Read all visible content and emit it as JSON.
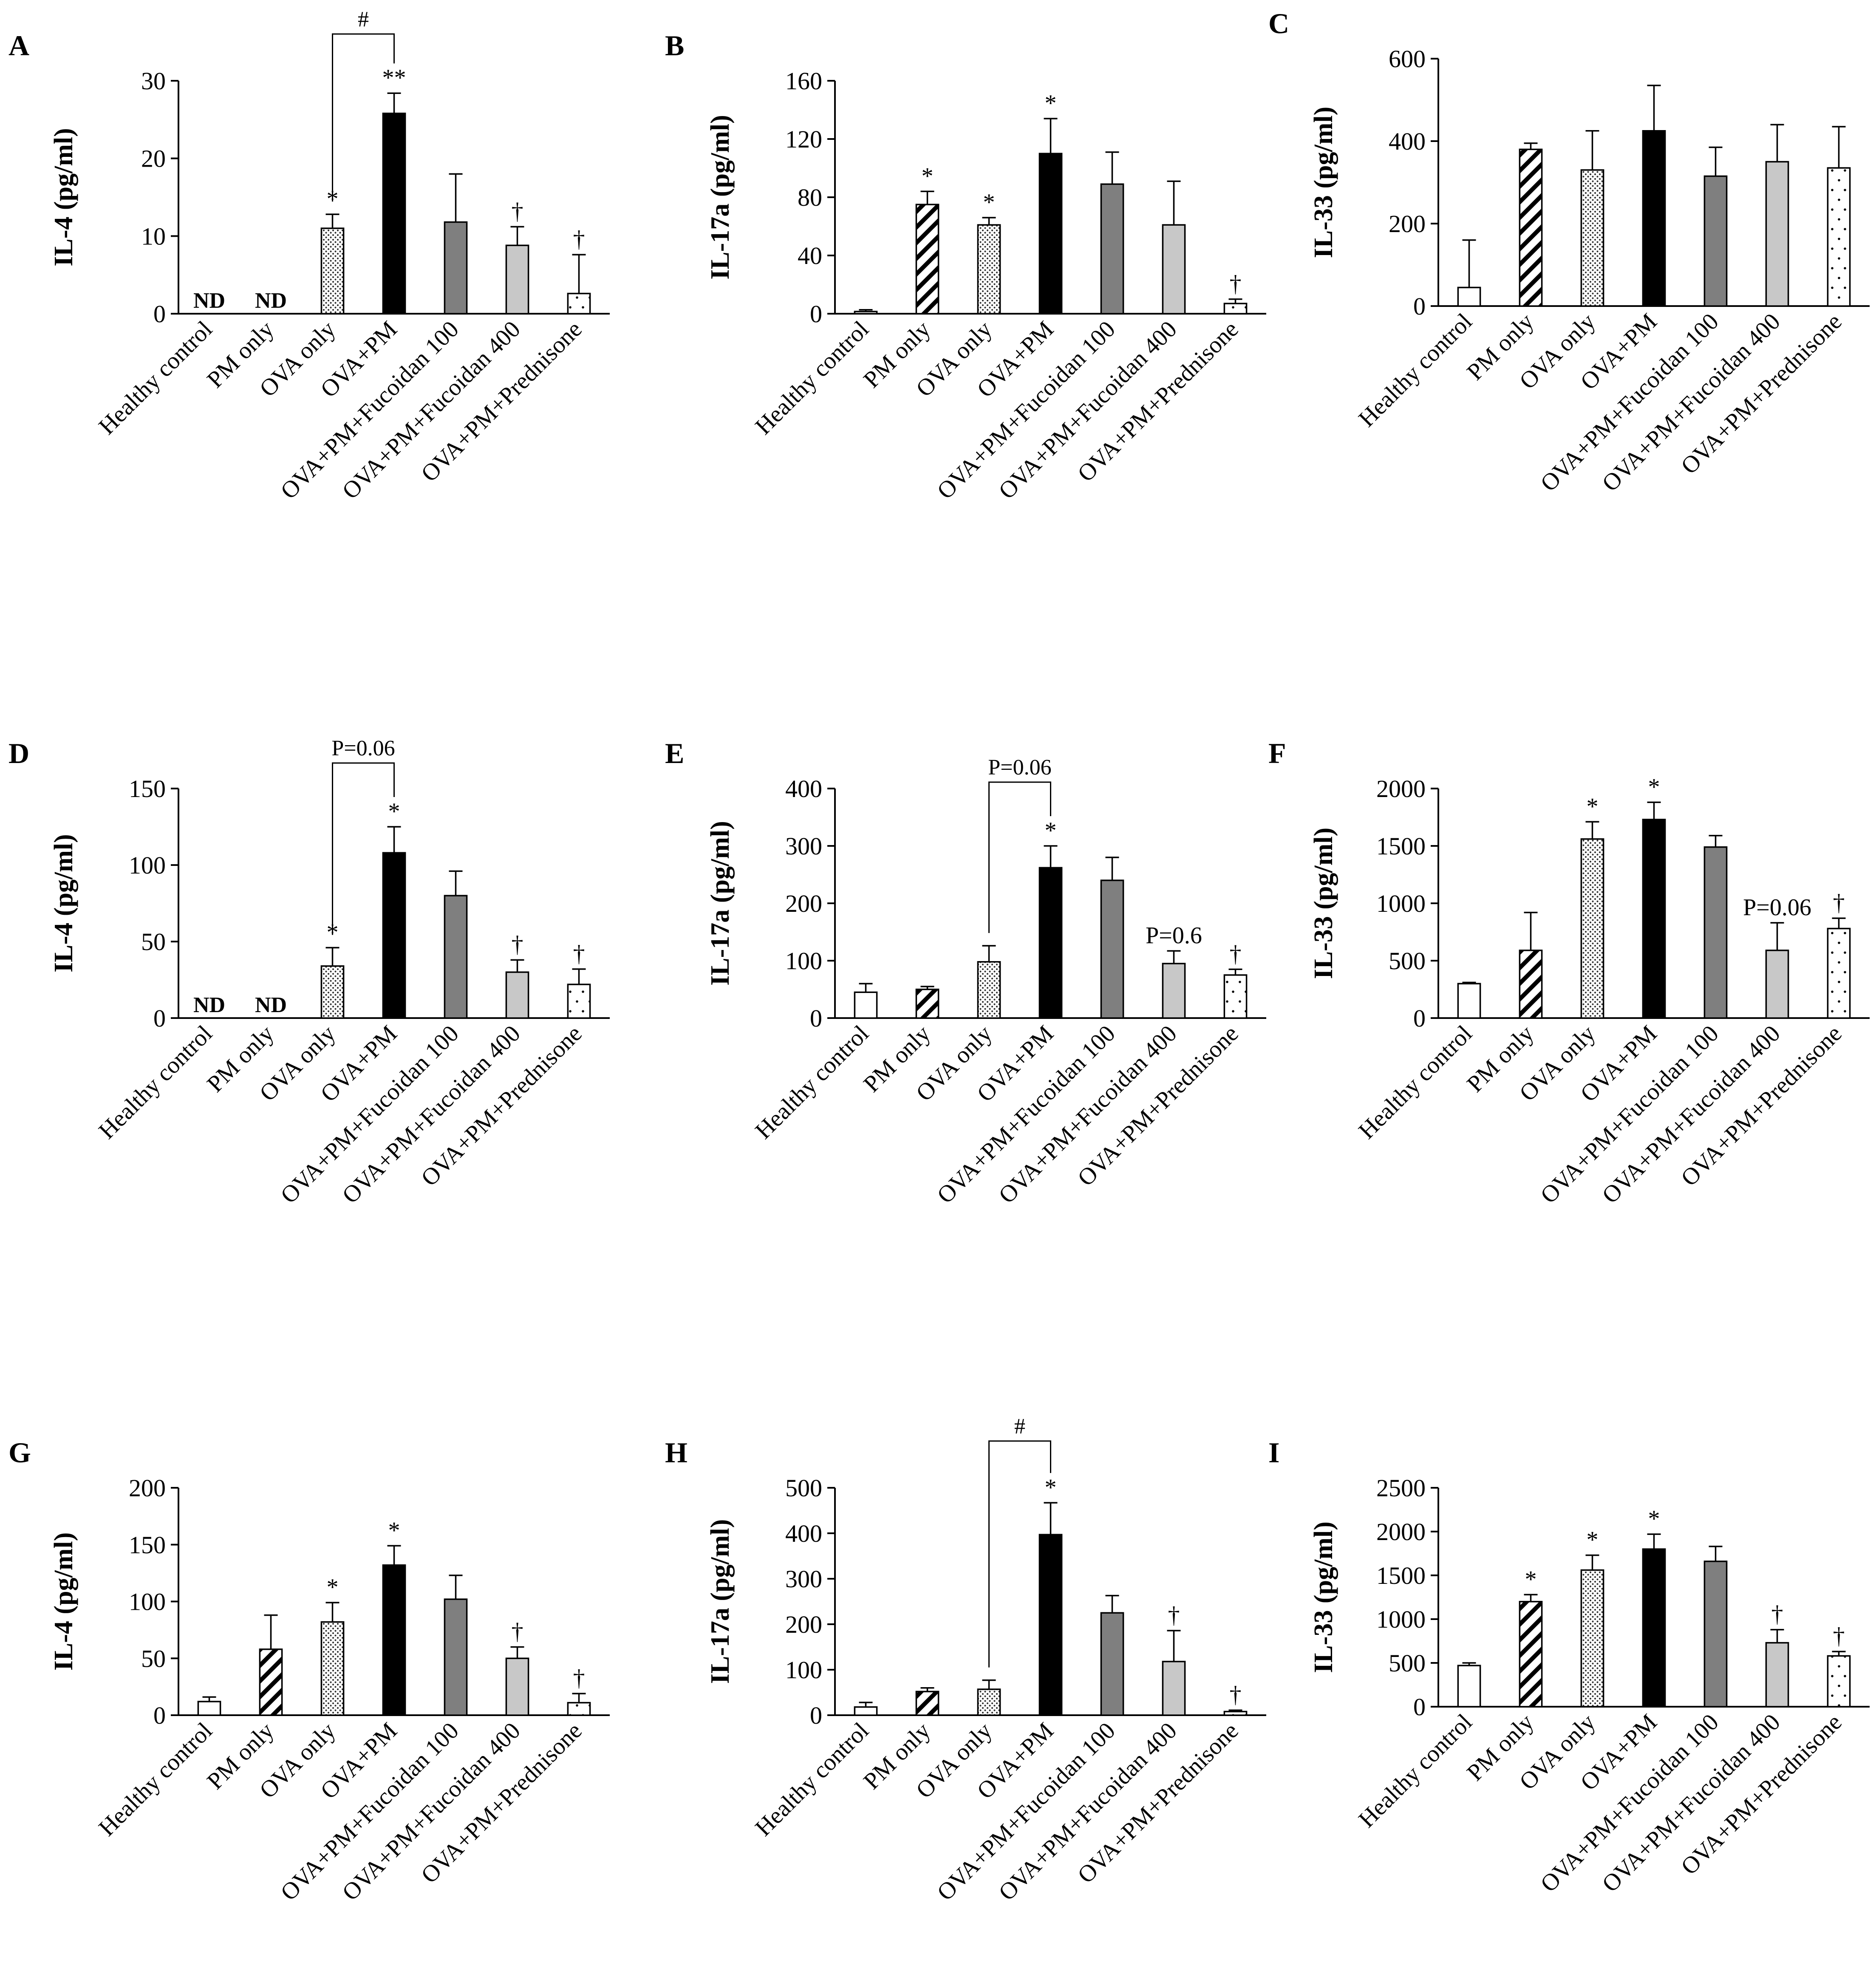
{
  "categories": [
    "Healthy control",
    "PM only",
    "OVA only",
    "OVA+PM",
    "OVA+PM+Fucoidan 100",
    "OVA+PM+Fucoidan 400",
    "OVA+PM+Prednisone"
  ],
  "fills": {
    "Healthy control": "white",
    "PM only": "diagonal-stripes",
    "OVA only": "dense-dots",
    "OVA+PM": "#000000",
    "OVA+PM+Fucoidan 100": "#7f7f7f",
    "OVA+PM+Fucoidan 400": "#c8c8c8",
    "OVA+PM+Prednisone": "sparse-dots"
  },
  "chart_data": [
    {
      "label": "A",
      "type": "bar",
      "ylabel": "IL-4 (pg/ml)",
      "ylim": [
        0,
        30
      ],
      "ticks": [
        "0",
        "10",
        "20",
        "30"
      ],
      "values": [
        0,
        0,
        11,
        25.8,
        11.8,
        8.8,
        2.6
      ],
      "errors": [
        0,
        0,
        1.8,
        2.6,
        6.2,
        2.4,
        5.0
      ],
      "annotations": [
        "ND",
        "ND",
        "*",
        "**",
        "",
        "†",
        "†"
      ],
      "bracket": {
        "from": 2,
        "to": 3,
        "label": "#"
      }
    },
    {
      "label": "B",
      "type": "bar",
      "ylabel": "IL-17a (pg/ml)",
      "ylim": [
        0,
        160
      ],
      "ticks": [
        "0",
        "40",
        "80",
        "120",
        "160"
      ],
      "values": [
        1.5,
        75,
        61,
        110,
        89,
        61,
        7
      ],
      "errors": [
        1.2,
        9,
        5,
        24,
        22,
        30,
        3
      ],
      "annotations": [
        "",
        "*",
        "*",
        "*",
        "",
        "",
        "†"
      ]
    },
    {
      "label": "C",
      "type": "bar",
      "ylabel": "IL-33 (pg/ml)",
      "ylim": [
        0,
        600
      ],
      "ticks": [
        "0",
        "200",
        "400",
        "600"
      ],
      "values": [
        45,
        380,
        330,
        425,
        315,
        350,
        335
      ],
      "errors": [
        115,
        15,
        95,
        110,
        70,
        90,
        100
      ],
      "annotations": [
        "",
        "",
        "",
        "",
        "",
        "",
        ""
      ]
    },
    {
      "label": "D",
      "type": "bar",
      "ylabel": "IL-4 (pg/ml)",
      "ylim": [
        0,
        150
      ],
      "ticks": [
        "0",
        "50",
        "100",
        "150"
      ],
      "values": [
        0,
        0,
        34,
        108,
        80,
        30,
        22
      ],
      "errors": [
        0,
        0,
        12,
        17,
        16,
        8,
        10
      ],
      "annotations": [
        "ND",
        "ND",
        "*",
        "*",
        "",
        "†",
        "†"
      ],
      "bracket": {
        "from": 2,
        "to": 3,
        "label": "P=0.06"
      }
    },
    {
      "label": "E",
      "type": "bar",
      "ylabel": "IL-17a (pg/ml)",
      "ylim": [
        0,
        400
      ],
      "ticks": [
        "0",
        "100",
        "200",
        "300",
        "400"
      ],
      "values": [
        45,
        50,
        98,
        262,
        240,
        95,
        75
      ],
      "errors": [
        15,
        5,
        28,
        38,
        40,
        22,
        10
      ],
      "annotations": [
        "",
        "",
        "",
        "*",
        "",
        "P=0.6",
        "†"
      ],
      "bracket": {
        "from": 2,
        "to": 3,
        "label": "P=0.06"
      }
    },
    {
      "label": "F",
      "type": "bar",
      "ylabel": "IL-33 (pg/ml)",
      "ylim": [
        0,
        2000
      ],
      "ticks": [
        "0",
        "500",
        "1000",
        "1500",
        "2000"
      ],
      "values": [
        300,
        590,
        1560,
        1730,
        1490,
        590,
        780
      ],
      "errors": [
        10,
        330,
        150,
        150,
        100,
        240,
        90
      ],
      "annotations": [
        "",
        "",
        "*",
        "*",
        "",
        "P=0.06",
        "†"
      ]
    },
    {
      "label": "G",
      "type": "bar",
      "ylabel": "IL-4 (pg/ml)",
      "ylim": [
        0,
        200
      ],
      "ticks": [
        "0",
        "50",
        "100",
        "150",
        "200"
      ],
      "values": [
        12,
        58,
        82,
        132,
        102,
        50,
        11
      ],
      "errors": [
        4,
        30,
        17,
        17,
        21,
        10,
        8
      ],
      "annotations": [
        "",
        "",
        "*",
        "*",
        "",
        "†",
        "†"
      ]
    },
    {
      "label": "H",
      "type": "bar",
      "ylabel": "IL-17a (pg/ml)",
      "ylim": [
        0,
        500
      ],
      "ticks": [
        "0",
        "100",
        "200",
        "300",
        "400",
        "500"
      ],
      "values": [
        18,
        52,
        57,
        397,
        225,
        118,
        8
      ],
      "errors": [
        10,
        8,
        20,
        70,
        38,
        68,
        3
      ],
      "annotations": [
        "",
        "",
        "",
        "*",
        "",
        "†",
        "†"
      ],
      "bracket": {
        "from": 2,
        "to": 3,
        "label": "#"
      }
    },
    {
      "label": "I",
      "type": "bar",
      "ylabel": "IL-33 (pg/ml)",
      "ylim": [
        0,
        2500
      ],
      "ticks": [
        "0",
        "500",
        "1000",
        "1500",
        "2000",
        "2500"
      ],
      "values": [
        470,
        1200,
        1560,
        1800,
        1660,
        730,
        580
      ],
      "errors": [
        30,
        80,
        170,
        170,
        170,
        150,
        50
      ],
      "annotations": [
        "",
        "*",
        "*",
        "*",
        "",
        "†",
        "†"
      ]
    }
  ]
}
